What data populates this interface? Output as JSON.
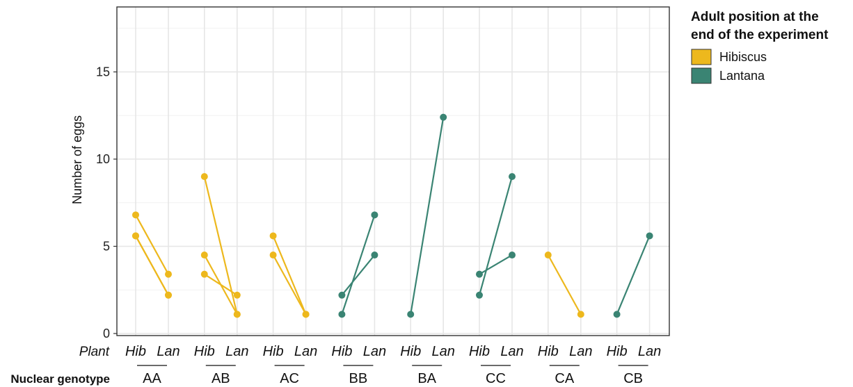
{
  "chart_data": {
    "type": "line",
    "title": "",
    "ylabel": "Number of eggs",
    "ylim": [
      0,
      19
    ],
    "yticks": [
      0,
      5,
      10,
      15
    ],
    "grid": true,
    "plant_row_label": "Plant",
    "genotype_row_label": "Nuclear genotype",
    "plant_levels": [
      "Hib",
      "Lan"
    ],
    "genotypes": [
      "AA",
      "AB",
      "AC",
      "BB",
      "BA",
      "CC",
      "CA",
      "CB"
    ],
    "legend": {
      "title_line1": "Adult position at the",
      "title_line2": "end of the experiment",
      "placement": "right",
      "entries": [
        {
          "name": "Hibiscus",
          "color": "#EDB81D"
        },
        {
          "name": "Lantana",
          "color": "#3A8473"
        }
      ]
    },
    "pairs": [
      {
        "genotype": "AA",
        "position": "Hibiscus",
        "hib": 6.8,
        "lan": 3.4
      },
      {
        "genotype": "AA",
        "position": "Hibiscus",
        "hib": 5.6,
        "lan": 2.2
      },
      {
        "genotype": "AA",
        "position": "Hibiscus",
        "hib": 5.6,
        "lan": 2.2
      },
      {
        "genotype": "AB",
        "position": "Hibiscus",
        "hib": 9.0,
        "lan": 1.1
      },
      {
        "genotype": "AB",
        "position": "Hibiscus",
        "hib": 4.5,
        "lan": 1.1
      },
      {
        "genotype": "AB",
        "position": "Hibiscus",
        "hib": 3.4,
        "lan": 2.2
      },
      {
        "genotype": "AC",
        "position": "Hibiscus",
        "hib": 5.6,
        "lan": 1.1
      },
      {
        "genotype": "AC",
        "position": "Hibiscus",
        "hib": 4.5,
        "lan": 1.1
      },
      {
        "genotype": "BB",
        "position": "Lantana",
        "hib": 1.1,
        "lan": 6.8
      },
      {
        "genotype": "BB",
        "position": "Lantana",
        "hib": 2.2,
        "lan": 4.5
      },
      {
        "genotype": "BA",
        "position": "Lantana",
        "hib": 1.1,
        "lan": 12.4
      },
      {
        "genotype": "CC",
        "position": "Lantana",
        "hib": 2.2,
        "lan": 9.0
      },
      {
        "genotype": "CC",
        "position": "Lantana",
        "hib": 3.4,
        "lan": 4.5
      },
      {
        "genotype": "CA",
        "position": "Hibiscus",
        "hib": 4.5,
        "lan": 1.1
      },
      {
        "genotype": "CB",
        "position": "Lantana",
        "hib": 1.1,
        "lan": 5.6
      }
    ]
  }
}
